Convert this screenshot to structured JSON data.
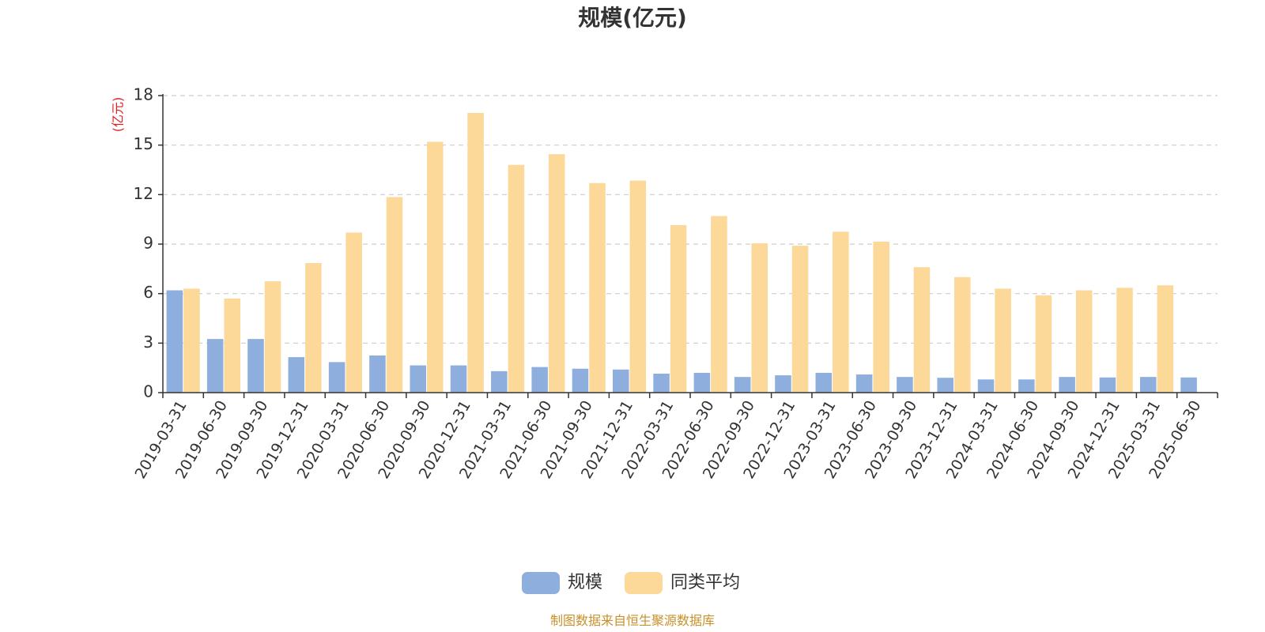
{
  "chart_data": {
    "type": "bar",
    "title": "规模(亿元)",
    "unit_label": "(亿元)",
    "ylim": [
      0,
      18
    ],
    "yticks": [
      0,
      3,
      6,
      9,
      12,
      15,
      18
    ],
    "grid": true,
    "legend_position": "bottom-center",
    "categories": [
      "2019-03-31",
      "2019-06-30",
      "2019-09-30",
      "2019-12-31",
      "2020-03-31",
      "2020-06-30",
      "2020-09-30",
      "2020-12-31",
      "2021-03-31",
      "2021-06-30",
      "2021-09-30",
      "2021-12-31",
      "2022-03-31",
      "2022-06-30",
      "2022-09-30",
      "2022-12-31",
      "2023-03-31",
      "2023-06-30",
      "2023-09-30",
      "2023-12-31",
      "2024-03-31",
      "2024-06-30",
      "2024-09-30",
      "2024-12-31",
      "2025-03-31",
      "2025-06-30"
    ],
    "series": [
      {
        "name": "规模",
        "color": "#8eaedd",
        "values": [
          6.2,
          3.25,
          3.25,
          2.15,
          1.85,
          2.25,
          1.65,
          1.65,
          1.3,
          1.55,
          1.45,
          1.4,
          1.15,
          1.2,
          0.95,
          1.05,
          1.2,
          1.1,
          0.95,
          0.9,
          0.8,
          0.8,
          0.95,
          0.92,
          0.95,
          0.92
        ]
      },
      {
        "name": "同类平均",
        "color": "#fcd899",
        "values": [
          6.3,
          5.7,
          6.75,
          7.85,
          9.7,
          11.85,
          15.2,
          16.95,
          13.8,
          14.45,
          12.7,
          12.85,
          10.15,
          10.7,
          9.05,
          8.9,
          9.75,
          9.15,
          7.6,
          7.0,
          6.3,
          5.9,
          6.2,
          6.35,
          6.5,
          null
        ]
      }
    ],
    "source_note": "制图数据来自恒生聚源数据库"
  }
}
